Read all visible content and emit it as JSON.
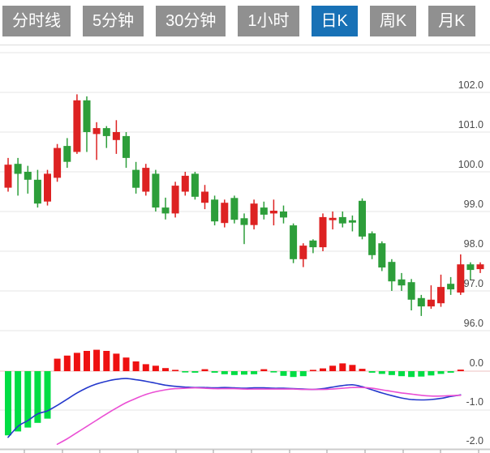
{
  "tabbar": {
    "items": [
      {
        "label": "分时线"
      },
      {
        "label": "5分钟"
      },
      {
        "label": "30分钟"
      },
      {
        "label": "1小时"
      },
      {
        "label": "日K"
      },
      {
        "label": "周K"
      },
      {
        "label": "月K"
      }
    ],
    "active_label": "日K",
    "active_bg": "#1871b6",
    "inactive_bg": "#909090",
    "text_color": "#ffffff"
  },
  "chart_data": {
    "type": "candlestick",
    "title": "",
    "legend_position": "none",
    "grid": true,
    "colors": {
      "candle_up": "#dd2222",
      "candle_down": "#2d9e3a",
      "hist_up": "#ee1111",
      "hist_down": "#00dd44",
      "dif_line": "#2438cc",
      "dea_line": "#ea4fd4",
      "gridline": "#e4e4e4",
      "zero_line": "#eec0c0",
      "border": "#cccccc",
      "tick": "#999999",
      "axis_text": "#4a4a4a"
    },
    "kline_panel": {
      "y_axis_labels": [
        "102.0",
        "101.0",
        "100.0",
        "99.0",
        "98.0",
        "97.0",
        "96.0"
      ],
      "y_label_values": [
        102,
        101,
        100,
        99,
        98,
        97,
        96
      ],
      "grid_prices": [
        103,
        102,
        101,
        100,
        99,
        98,
        97,
        96
      ],
      "ylim": [
        95.5,
        103.0
      ],
      "open": [
        99.6,
        100.2,
        100.0,
        99.8,
        99.25,
        99.85,
        100.65,
        100.5,
        101.8,
        100.95,
        101.1,
        100.8,
        100.9,
        100.05,
        99.5,
        99.95,
        99.1,
        98.95,
        99.5,
        99.95,
        99.22,
        99.3,
        98.71,
        99.34,
        98.83,
        98.66,
        99.1,
        98.95,
        99.0,
        98.65,
        97.8,
        98.27,
        98.1,
        98.78,
        98.86,
        98.78,
        99.27,
        98.45,
        98.2,
        97.73,
        97.29,
        97.22,
        96.82,
        96.61,
        96.69,
        97.18,
        96.96,
        97.67,
        97.55
      ],
      "close": [
        100.18,
        99.95,
        99.8,
        99.2,
        99.95,
        100.6,
        100.25,
        101.8,
        101.0,
        101.1,
        100.9,
        101.0,
        100.35,
        99.6,
        100.1,
        99.1,
        98.95,
        99.65,
        99.9,
        99.37,
        99.5,
        98.75,
        99.22,
        98.79,
        98.66,
        99.2,
        98.92,
        99.02,
        98.85,
        97.8,
        98.14,
        98.1,
        98.86,
        98.84,
        98.7,
        98.72,
        98.37,
        97.9,
        97.59,
        97.24,
        97.14,
        96.78,
        96.61,
        96.78,
        97.1,
        97.04,
        97.67,
        97.53,
        97.67
      ],
      "high": [
        100.35,
        100.35,
        100.15,
        100.05,
        100.05,
        100.7,
        100.85,
        101.95,
        101.9,
        101.25,
        101.15,
        101.3,
        101.0,
        100.25,
        100.2,
        100.05,
        99.35,
        99.75,
        100.0,
        100.0,
        99.67,
        99.4,
        99.3,
        99.4,
        98.95,
        99.3,
        99.25,
        99.3,
        99.15,
        98.7,
        98.2,
        98.3,
        98.95,
        99.0,
        99.0,
        98.9,
        99.33,
        98.5,
        98.25,
        97.8,
        97.45,
        97.3,
        96.9,
        97.14,
        97.41,
        97.35,
        97.92,
        97.72,
        97.72
      ],
      "low": [
        99.5,
        99.4,
        99.45,
        99.1,
        99.15,
        99.75,
        100.1,
        100.45,
        100.5,
        100.3,
        100.6,
        100.45,
        100.1,
        99.45,
        99.4,
        99.0,
        98.8,
        98.85,
        99.4,
        99.3,
        99.06,
        98.65,
        98.6,
        98.7,
        98.18,
        98.55,
        98.8,
        98.65,
        98.7,
        97.7,
        97.6,
        97.95,
        98.0,
        98.55,
        98.6,
        98.5,
        98.3,
        97.8,
        97.5,
        97.0,
        97.0,
        96.51,
        96.37,
        96.55,
        96.6,
        96.9,
        96.9,
        97.27,
        97.45
      ]
    },
    "macd_panel": {
      "y_axis_labels": [
        "0.0",
        "-1.0",
        "-2.0"
      ],
      "y_label_values": [
        0,
        -1,
        -2
      ],
      "ylim": [
        -2.1,
        0.8
      ],
      "histogram": [
        -1.65,
        -1.55,
        -1.45,
        -1.33,
        -1.22,
        0.32,
        0.4,
        0.47,
        0.52,
        0.55,
        0.52,
        0.45,
        0.35,
        0.25,
        0.18,
        0.14,
        0.08,
        0.03,
        -0.03,
        -0.04,
        0.05,
        -0.04,
        -0.08,
        -0.1,
        -0.09,
        -0.08,
        0.05,
        -0.03,
        -0.12,
        -0.15,
        -0.13,
        0.02,
        0.07,
        0.14,
        0.2,
        0.16,
        0.06,
        -0.04,
        -0.07,
        -0.1,
        -0.13,
        -0.15,
        -0.14,
        -0.11,
        -0.07,
        -0.04,
        0.04,
        0,
        0
      ],
      "dif": [
        -1.7,
        -1.42,
        -1.27,
        -1.1,
        -1.02,
        -0.88,
        -0.72,
        -0.56,
        -0.43,
        -0.33,
        -0.26,
        -0.21,
        -0.19,
        -0.22,
        -0.26,
        -0.31,
        -0.36,
        -0.39,
        -0.41,
        -0.42,
        -0.42,
        -0.43,
        -0.42,
        -0.43,
        -0.44,
        -0.43,
        -0.43,
        -0.44,
        -0.44,
        -0.45,
        -0.46,
        -0.47,
        -0.45,
        -0.41,
        -0.37,
        -0.35,
        -0.4,
        -0.48,
        -0.56,
        -0.63,
        -0.69,
        -0.73,
        -0.74,
        -0.73,
        -0.7,
        -0.65,
        -0.61,
        null,
        null
      ],
      "dea": [
        null,
        null,
        null,
        null,
        null,
        -1.88,
        -1.74,
        -1.58,
        -1.42,
        -1.26,
        -1.1,
        -0.95,
        -0.81,
        -0.7,
        -0.6,
        -0.53,
        -0.48,
        -0.45,
        -0.44,
        -0.43,
        -0.44,
        -0.45,
        -0.45,
        -0.45,
        -0.46,
        -0.46,
        -0.46,
        -0.46,
        -0.46,
        -0.46,
        -0.47,
        -0.47,
        -0.47,
        -0.46,
        -0.44,
        -0.42,
        -0.42,
        -0.44,
        -0.48,
        -0.52,
        -0.56,
        -0.59,
        -0.62,
        -0.64,
        -0.64,
        -0.63,
        -0.62,
        null,
        null
      ],
      "x_ticks": [
        30,
        77,
        123,
        170,
        217,
        263,
        310,
        357,
        403,
        450,
        497,
        543,
        590
      ]
    }
  }
}
